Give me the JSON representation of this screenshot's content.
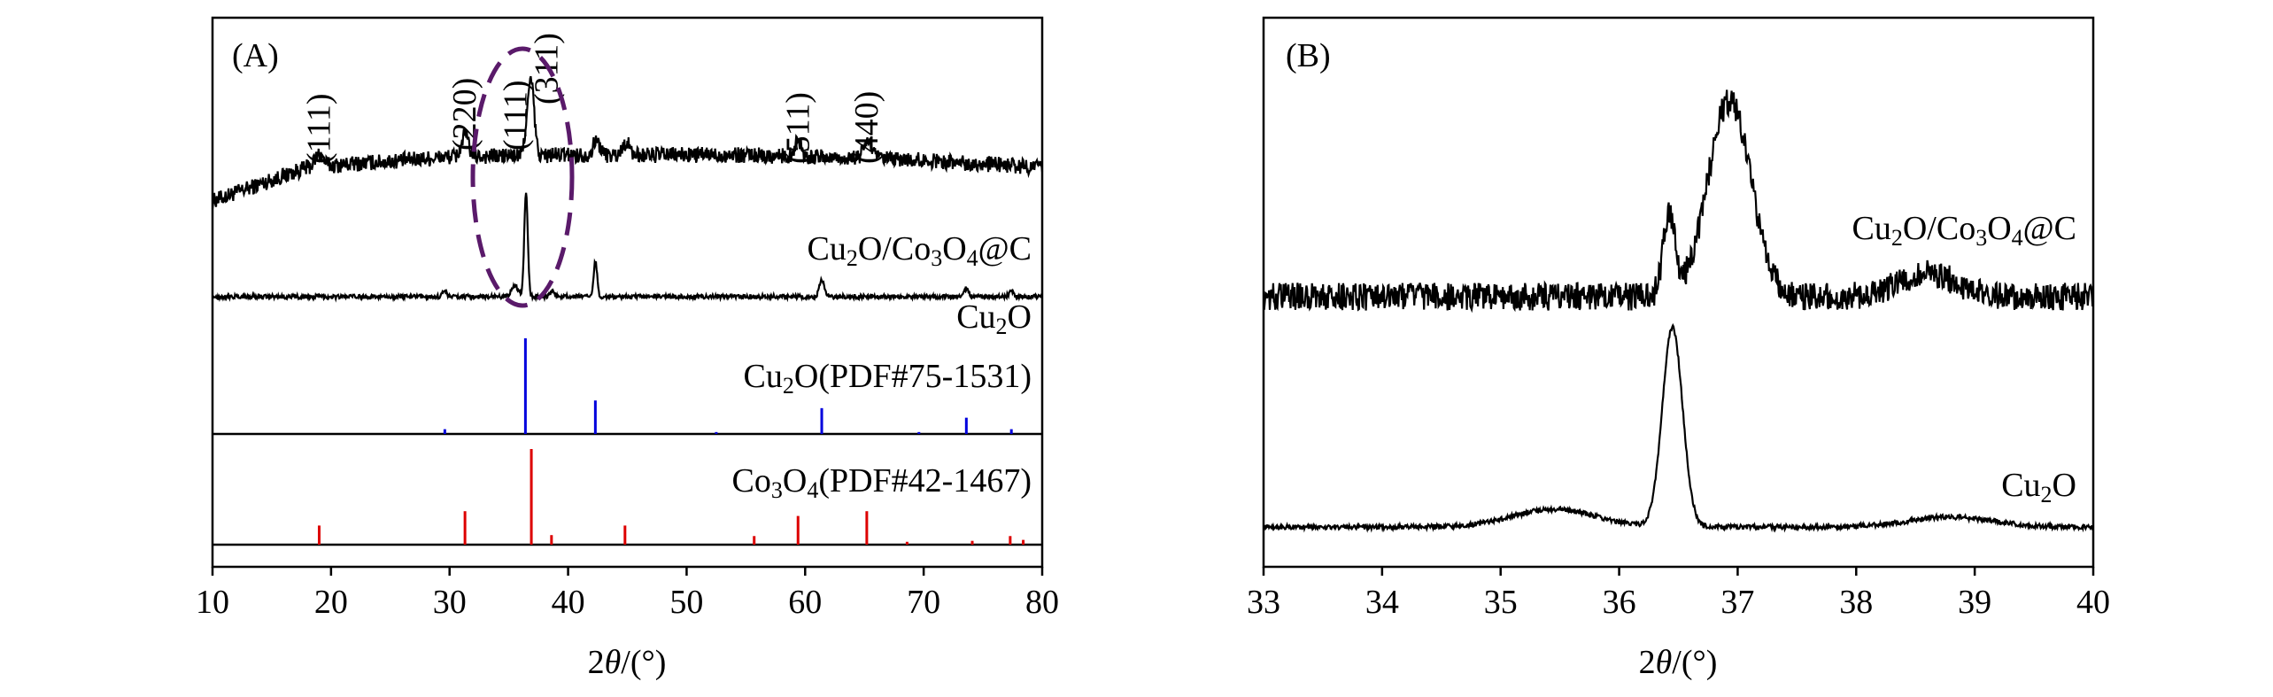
{
  "chart_data": [
    {
      "panel_label": "(A)",
      "type": "line",
      "xlabel": "2θ/(°)",
      "xlim": [
        10,
        80
      ],
      "xticks": [
        10,
        20,
        30,
        40,
        50,
        60,
        70,
        80
      ],
      "y_axis_shown": false,
      "grid": false,
      "series": [
        {
          "name": "Cu₂O/Co₃O₄@C",
          "color": "#000000",
          "baseline": [
            [
              10,
              0.44
            ],
            [
              18,
              0.63
            ],
            [
              30,
              0.69
            ],
            [
              40,
              0.7
            ],
            [
              55,
              0.7
            ],
            [
              70,
              0.67
            ],
            [
              80,
              0.63
            ]
          ],
          "noise": 0.045,
          "peaks": [
            [
              19.0,
              0.07,
              0.35
            ],
            [
              31.3,
              0.12,
              0.3
            ],
            [
              36.5,
              0.12,
              0.2
            ],
            [
              36.9,
              0.4,
              0.25
            ],
            [
              42.4,
              0.08,
              0.3
            ],
            [
              44.9,
              0.07,
              0.3
            ],
            [
              59.4,
              0.09,
              0.3
            ],
            [
              65.3,
              0.1,
              0.35
            ]
          ]
        },
        {
          "name": "Cu₂O",
          "color": "#000000",
          "baseline": [
            [
              10,
              0.0
            ],
            [
              80,
              0.0
            ]
          ],
          "noise": 0.012,
          "peaks": [
            [
              29.6,
              0.03,
              0.2
            ],
            [
              35.5,
              0.06,
              0.3
            ],
            [
              36.45,
              0.58,
              0.15
            ],
            [
              38.7,
              0.03,
              0.2
            ],
            [
              42.3,
              0.2,
              0.15
            ],
            [
              61.4,
              0.1,
              0.2
            ],
            [
              73.6,
              0.05,
              0.2
            ],
            [
              77.4,
              0.03,
              0.2
            ]
          ]
        }
      ],
      "reference_patterns": [
        {
          "name": "Cu₂O(PDF#75-1531)",
          "color": "#0000dd",
          "sticks": [
            [
              29.6,
              0.05
            ],
            [
              36.4,
              1.0
            ],
            [
              42.3,
              0.35
            ],
            [
              52.5,
              0.02
            ],
            [
              61.4,
              0.27
            ],
            [
              69.6,
              0.02
            ],
            [
              73.6,
              0.17
            ],
            [
              77.4,
              0.05
            ]
          ]
        },
        {
          "name": "Co₃O₄(PDF#42-1467)",
          "color": "#dd0000",
          "sticks": [
            [
              19.0,
              0.2
            ],
            [
              31.3,
              0.35
            ],
            [
              36.9,
              1.0
            ],
            [
              38.6,
              0.1
            ],
            [
              44.8,
              0.2
            ],
            [
              55.7,
              0.09
            ],
            [
              59.4,
              0.3
            ],
            [
              65.2,
              0.35
            ],
            [
              68.6,
              0.03
            ],
            [
              74.1,
              0.04
            ],
            [
              77.3,
              0.09
            ],
            [
              78.4,
              0.05
            ]
          ]
        }
      ],
      "annotations": [
        {
          "text": "(111)",
          "x": 19.0
        },
        {
          "text": "(220)",
          "x": 31.3
        },
        {
          "text": "(111)",
          "x": 35.6
        },
        {
          "text": "(311)",
          "x": 38.2
        },
        {
          "text": "(511)",
          "x": 59.4
        },
        {
          "text": "(440)",
          "x": 65.2
        }
      ],
      "highlight": {
        "shape": "dashed-ellipse",
        "color": "#5a1a6a",
        "x_range": [
          32.3,
          41.5
        ]
      }
    },
    {
      "panel_label": "(B)",
      "type": "line",
      "xlabel": "2θ/(°)",
      "xlim": [
        33,
        40
      ],
      "xticks": [
        33,
        34,
        35,
        36,
        37,
        38,
        39,
        40
      ],
      "y_axis_shown": false,
      "grid": false,
      "series": [
        {
          "name": "Cu₂O/Co₃O₄@C",
          "color": "#000000",
          "baseline": [
            [
              33,
              0.0
            ],
            [
              40,
              0.0
            ]
          ],
          "noise": 0.06,
          "peaks": [
            [
              36.42,
              0.35,
              0.05
            ],
            [
              36.93,
              0.85,
              0.18
            ],
            [
              38.6,
              0.1,
              0.25
            ]
          ]
        },
        {
          "name": "Cu₂O",
          "color": "#000000",
          "baseline": [
            [
              33,
              0.0
            ],
            [
              40,
              0.0
            ]
          ],
          "noise": 0.012,
          "peaks": [
            [
              35.45,
              0.09,
              0.35
            ],
            [
              36.45,
              1.0,
              0.085
            ],
            [
              38.8,
              0.05,
              0.35
            ]
          ]
        }
      ]
    }
  ],
  "labels": {
    "panelA": "(A)",
    "panelB": "(B)",
    "xlabelA": "2θ/(°)",
    "xlabelB": "2θ/(°)",
    "a_comp_pre": "Cu",
    "a_comp_sub1": "2",
    "a_comp_mid": "O/Co",
    "a_comp_sub2": "3",
    "a_comp_mid2": "O",
    "a_comp_sub3": "4",
    "a_comp_post": "@C",
    "a_cu_pre": "Cu",
    "a_cu_sub": "2",
    "a_cu_post": "O",
    "a_ref1_pre": "Cu",
    "a_ref1_sub": "2",
    "a_ref1_post": "O(PDF#75-1531)",
    "a_ref2_pre": "Co",
    "a_ref2_sub1": "3",
    "a_ref2_mid": "O",
    "a_ref2_sub2": "4",
    "a_ref2_post": "(PDF#42-1467)",
    "b_comp_pre": "Cu",
    "b_comp_sub1": "2",
    "b_comp_mid": "O/Co",
    "b_comp_sub2": "3",
    "b_comp_mid2": "O",
    "b_comp_sub3": "4",
    "b_comp_post": "@C",
    "b_cu_pre": "Cu",
    "b_cu_sub": "2",
    "b_cu_post": "O"
  }
}
